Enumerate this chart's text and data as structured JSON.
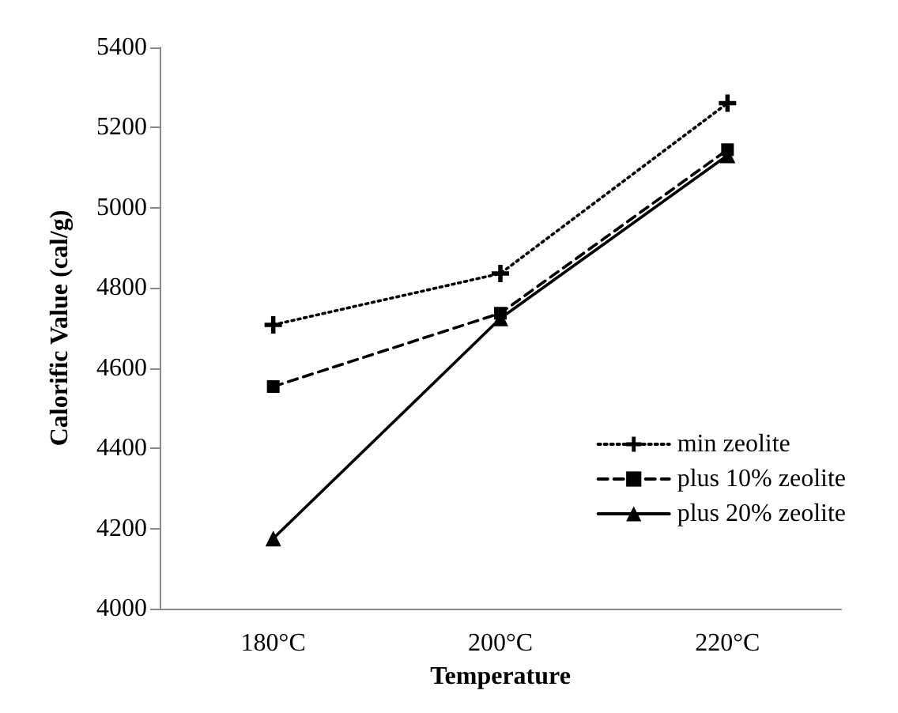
{
  "chart_data": {
    "type": "line",
    "xlabel": "Temperature",
    "ylabel": "Calorific Value (cal/g)",
    "categories": [
      "180°C",
      "200°C",
      "220°C"
    ],
    "series": [
      {
        "name": "min zeolite",
        "color": "#000000",
        "marker": "cross",
        "line_style": "dotted",
        "values": [
          4708,
          4836,
          5261
        ]
      },
      {
        "name": "plus 10% zeolite",
        "color": "#000000",
        "marker": "square",
        "line_style": "dashed",
        "values": [
          4554,
          4737,
          5145
        ]
      },
      {
        "name": "plus 20% zeolite",
        "color": "#000000",
        "marker": "triangle",
        "line_style": "solid",
        "values": [
          4175,
          4724,
          5131
        ]
      }
    ],
    "ylim": [
      4000,
      5400
    ],
    "yticks": [
      4000,
      4200,
      4400,
      4600,
      4800,
      5000,
      5200,
      5400
    ],
    "grid": false,
    "legend": "bottom right"
  }
}
